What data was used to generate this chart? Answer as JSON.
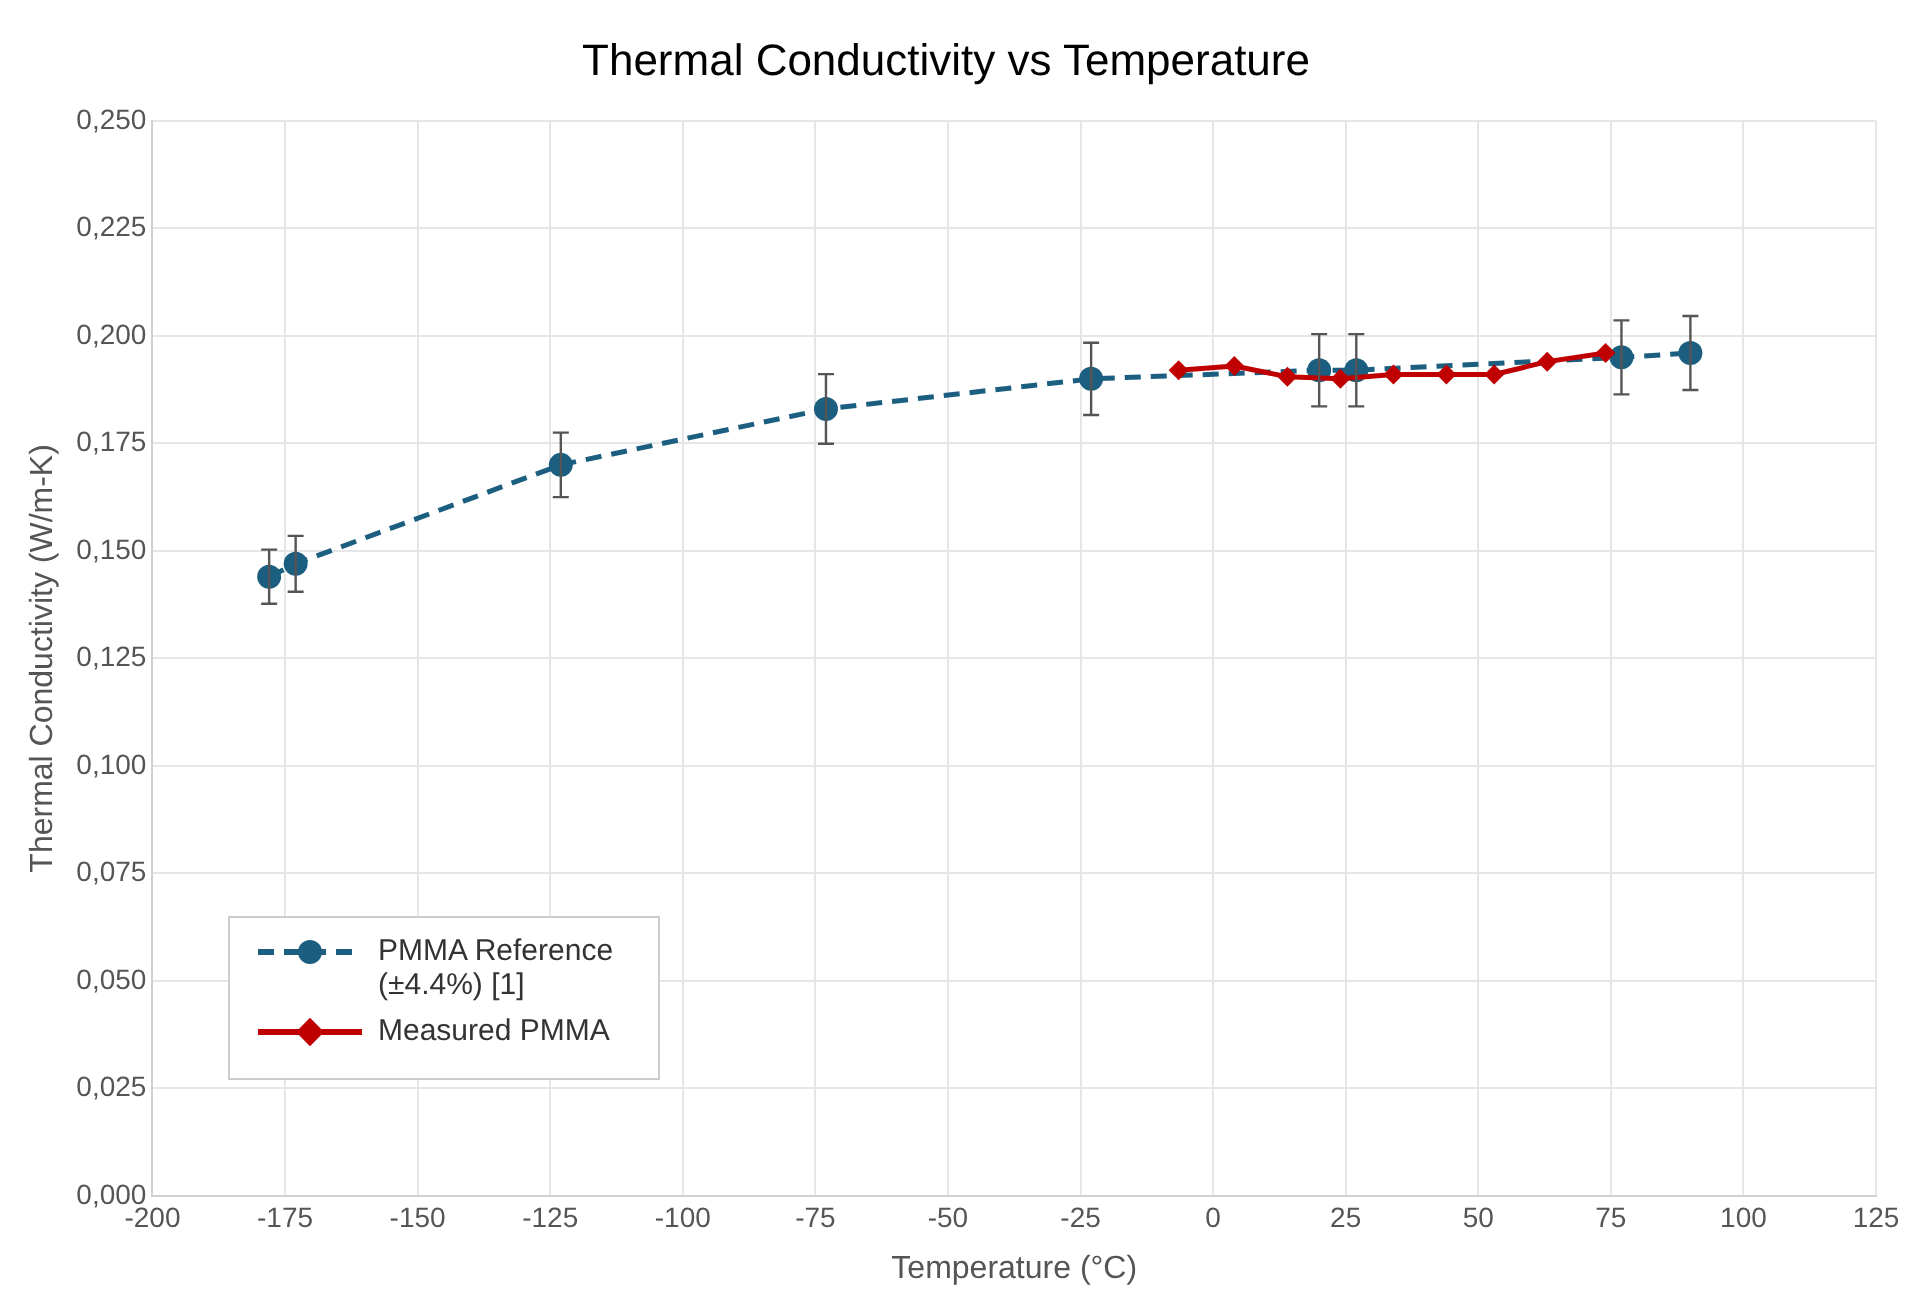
{
  "chart_data": {
    "type": "line",
    "title": "Thermal Conductivity vs Temperature",
    "xlabel": "Temperature (°C)",
    "ylabel": "Thermal Conductivity (W/m-K)",
    "xlim": [
      -200,
      125
    ],
    "xticks": [
      -200,
      -175,
      -150,
      -125,
      -100,
      -75,
      -50,
      -25,
      0,
      25,
      50,
      75,
      100,
      125
    ],
    "ylim": [
      0,
      0.25
    ],
    "yticks": [
      {
        "value": 0,
        "label": "0,000"
      },
      {
        "value": 0.025,
        "label": "0,025"
      },
      {
        "value": 0.05,
        "label": "0,050"
      },
      {
        "value": 0.075,
        "label": "0,075"
      },
      {
        "value": 0.1,
        "label": "0,100"
      },
      {
        "value": 0.125,
        "label": "0,125"
      },
      {
        "value": 0.15,
        "label": "0,150"
      },
      {
        "value": 0.175,
        "label": "0,175"
      },
      {
        "value": 0.2,
        "label": "0,200"
      },
      {
        "value": 0.225,
        "label": "0,225"
      },
      {
        "value": 0.25,
        "label": "0,250"
      }
    ],
    "grid": true,
    "legend": "bottom left",
    "series": [
      {
        "name": "PMMA Reference (±4.4%) [1]",
        "color": "#1b5e80",
        "marker": "circle",
        "line_style": "dashed",
        "x": [
          -178,
          -173,
          -123,
          -73,
          -23,
          20,
          27,
          77,
          90
        ],
        "values": [
          0.144,
          0.147,
          0.17,
          0.183,
          0.19,
          0.192,
          0.192,
          0.195,
          0.196
        ],
        "errors": [
          0.0063,
          0.0065,
          0.0075,
          0.0081,
          0.0084,
          0.0084,
          0.0084,
          0.0086,
          0.0086
        ]
      },
      {
        "name": "Measured PMMA",
        "color": "#c00000",
        "marker": "diamond",
        "line_style": "solid",
        "x": [
          -6.5,
          4,
          14,
          24,
          34,
          44,
          53,
          63,
          74
        ],
        "values": [
          0.192,
          0.193,
          0.1905,
          0.19,
          0.191,
          0.191,
          0.191,
          0.194,
          0.196
        ]
      }
    ]
  }
}
